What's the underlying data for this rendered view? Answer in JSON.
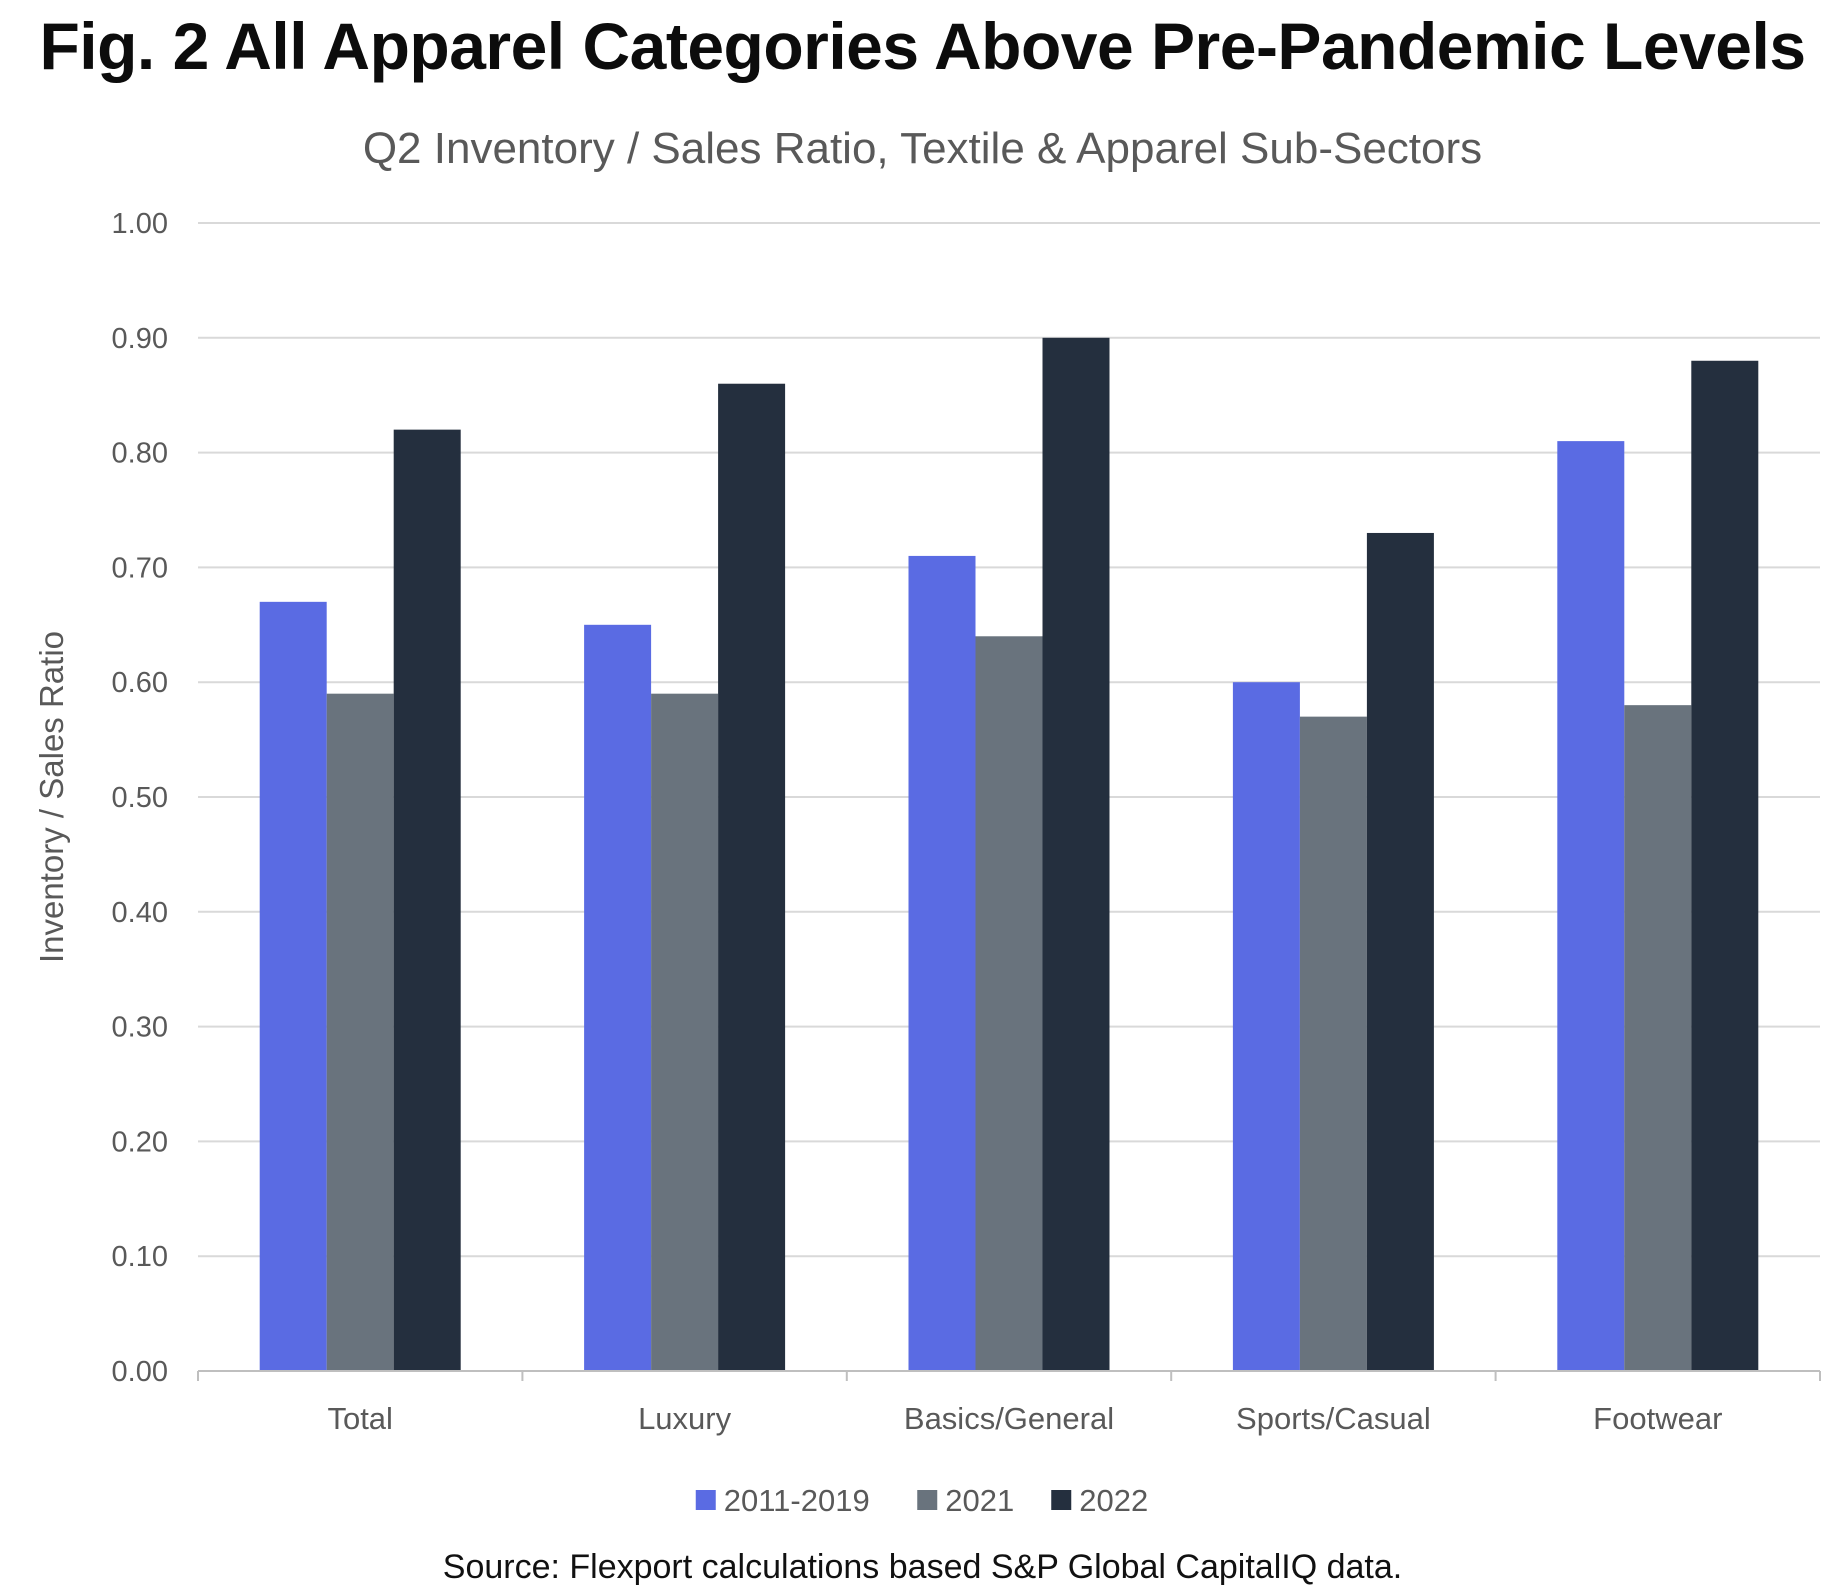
{
  "figure": {
    "title": "Fig. 2 All Apparel Categories Above Pre-Pandemic Levels",
    "source": "Source: Flexport calculations based S&P Global CapitalIQ data."
  },
  "chart_data": {
    "type": "bar",
    "title": "Q2 Inventory / Sales Ratio, Textile & Apparel Sub-Sectors",
    "xlabel": "",
    "ylabel": "Inventory / Sales Ratio",
    "categories": [
      "Total",
      "Luxury",
      "Basics/General",
      "Sports/Casual",
      "Footwear"
    ],
    "series": [
      {
        "name": "2011-2019",
        "color": "#5a6be3",
        "values": [
          0.67,
          0.65,
          0.71,
          0.6,
          0.81
        ]
      },
      {
        "name": "2021",
        "color": "#69737d",
        "values": [
          0.59,
          0.59,
          0.64,
          0.57,
          0.58
        ]
      },
      {
        "name": "2022",
        "color": "#242f3e",
        "values": [
          0.82,
          0.86,
          0.9,
          0.73,
          0.88
        ]
      }
    ],
    "ylim": [
      0,
      1.0
    ],
    "yticks": [
      "0.00",
      "0.10",
      "0.20",
      "0.30",
      "0.40",
      "0.50",
      "0.60",
      "0.70",
      "0.80",
      "0.90",
      "1.00"
    ],
    "grid": true,
    "legend_position": "bottom"
  }
}
